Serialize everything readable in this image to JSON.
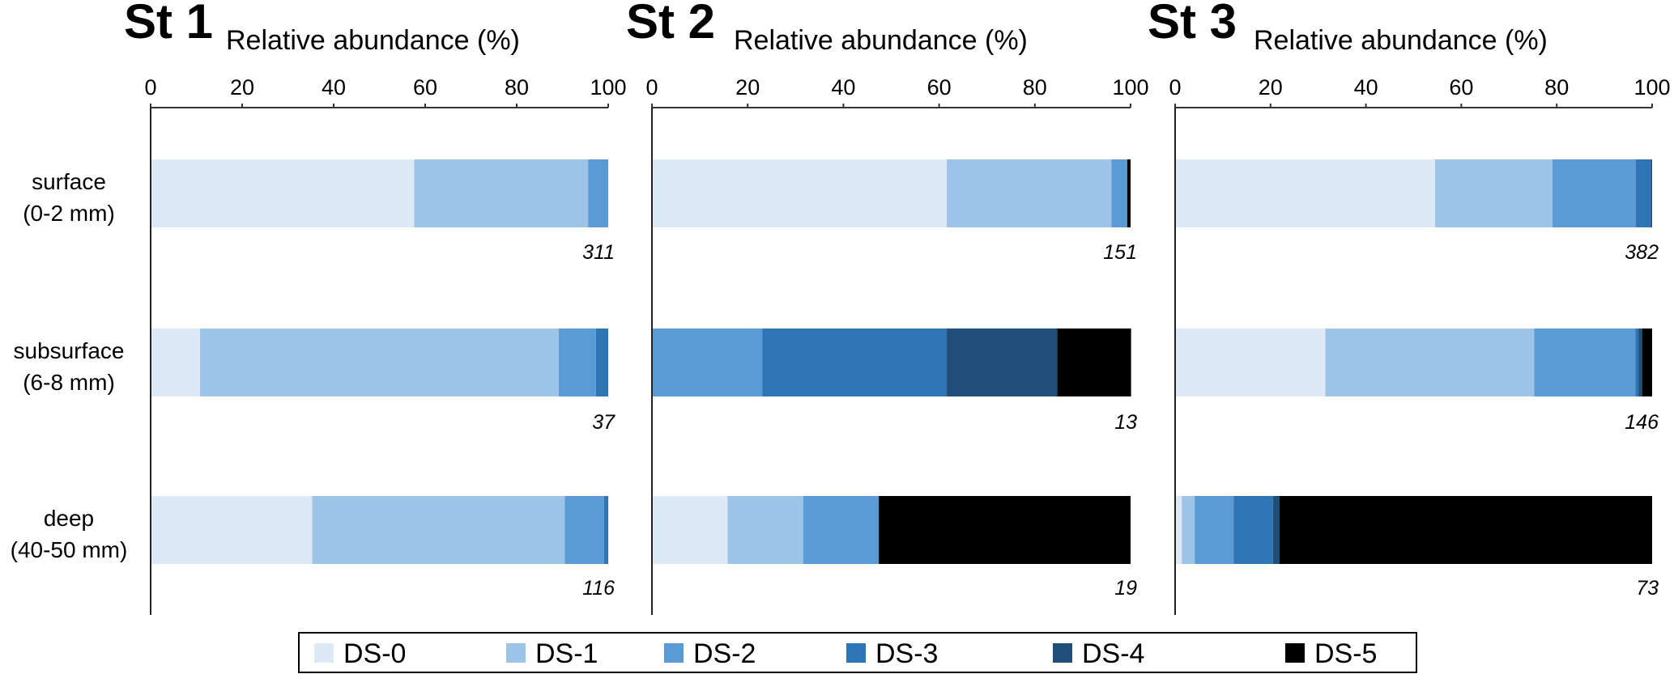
{
  "chart_data": {
    "type": "bar",
    "orientation": "horizontal-stacked",
    "xlabel": "Relative abundance (%)",
    "xlim": [
      0,
      100
    ],
    "xticks": [
      "0",
      "20",
      "40",
      "60",
      "80",
      "100"
    ],
    "grid": false,
    "legend_position": "bottom",
    "categories": [
      {
        "line1": "surface",
        "line2": "(0-2 mm)"
      },
      {
        "line1": "subsurface",
        "line2": "(6-8 mm)"
      },
      {
        "line1": "deep",
        "line2": "(40-50 mm)"
      }
    ],
    "legend": [
      {
        "name": "DS-0",
        "color": "#dde9f5"
      },
      {
        "name": "DS-1",
        "color": "#9dc3e6"
      },
      {
        "name": "DS-2",
        "color": "#5b9bd5"
      },
      {
        "name": "DS-3",
        "color": "#2e75b6"
      },
      {
        "name": "DS-4",
        "color": "#1f4e79"
      },
      {
        "name": "DS-5",
        "color": "#000000"
      }
    ],
    "panels": [
      {
        "title": "St 1",
        "bars": [
          {
            "category": "surface (0-2 mm)",
            "n": "311",
            "values": [
              57.6,
              38.0,
              4.4,
              0,
              0,
              0
            ]
          },
          {
            "category": "subsurface (6-8 mm)",
            "n": "37",
            "values": [
              10.8,
              78.4,
              8.1,
              2.7,
              0,
              0
            ]
          },
          {
            "category": "deep (40-50 mm)",
            "n": "116",
            "values": [
              35.3,
              55.2,
              8.6,
              0.9,
              0,
              0
            ]
          }
        ]
      },
      {
        "title": "St 2",
        "bars": [
          {
            "category": "surface (0-2 mm)",
            "n": "151",
            "values": [
              61.6,
              34.4,
              3.3,
              0,
              0,
              0.7
            ]
          },
          {
            "category": "subsurface (6-8 mm)",
            "n": "13",
            "values": [
              0,
              0,
              23.1,
              38.5,
              23.1,
              15.4
            ]
          },
          {
            "category": "deep (40-50 mm)",
            "n": "19",
            "values": [
              15.8,
              15.8,
              15.8,
              0,
              0,
              52.6
            ]
          }
        ]
      },
      {
        "title": "St 3",
        "bars": [
          {
            "category": "surface (0-2 mm)",
            "n": "382",
            "values": [
              54.5,
              24.6,
              17.5,
              3.1,
              0.3,
              0
            ]
          },
          {
            "category": "subsurface (6-8 mm)",
            "n": "146",
            "values": [
              31.5,
              43.8,
              21.2,
              0.7,
              0.7,
              2.1
            ]
          },
          {
            "category": "deep (40-50 mm)",
            "n": "73",
            "values": [
              1.4,
              2.7,
              8.2,
              8.2,
              1.4,
              78.1
            ]
          }
        ]
      }
    ]
  }
}
